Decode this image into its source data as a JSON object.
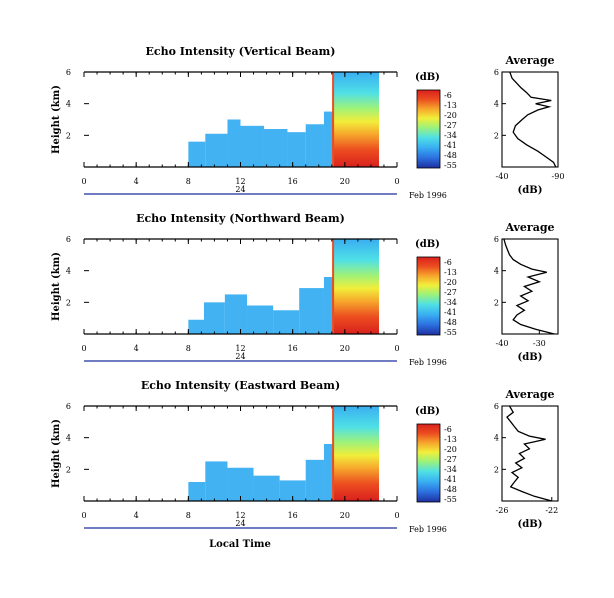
{
  "chart_data": {
    "type": "heatmap",
    "colorbar": {
      "label": "(dB)",
      "ticks": [
        "-6",
        "-13",
        "-20",
        "-27",
        "-34",
        "-41",
        "-48",
        "-55"
      ],
      "colors": [
        "#1e2f9e",
        "#2c6fe0",
        "#39aef2",
        "#4fe0e6",
        "#9df27a",
        "#f2ee3a",
        "#f6a52c",
        "#ec4d20",
        "#d9201e"
      ]
    },
    "bottom_label": "Local Time",
    "panels": [
      {
        "title": "Echo Intensity (Vertical Beam)",
        "ylabel": "Height (km)",
        "ylim": [
          0,
          6
        ],
        "y_ticks": [
          "6",
          "4",
          "2"
        ],
        "xlim": [
          0,
          24
        ],
        "x_ticks": [
          "0",
          "4",
          "8",
          "12",
          "16",
          "20",
          "0"
        ],
        "date_tick": "24",
        "date_label": "Feb 1996",
        "patches": [
          {
            "t0": 8.0,
            "t1": 9.3,
            "h0": 0.0,
            "h1": 1.6,
            "level": 0.2
          },
          {
            "t0": 9.3,
            "t1": 11.0,
            "h0": 0.0,
            "h1": 2.1,
            "level": 0.24
          },
          {
            "t0": 11.0,
            "t1": 12.0,
            "h0": 0.0,
            "h1": 3.0,
            "level": 0.3
          },
          {
            "t0": 12.0,
            "t1": 13.8,
            "h0": 0.0,
            "h1": 2.6,
            "level": 0.27
          },
          {
            "t0": 13.8,
            "t1": 15.6,
            "h0": 0.0,
            "h1": 2.4,
            "level": 0.24
          },
          {
            "t0": 15.6,
            "t1": 17.0,
            "h0": 0.0,
            "h1": 2.2,
            "level": 0.22
          },
          {
            "t0": 17.0,
            "t1": 18.4,
            "h0": 0.0,
            "h1": 2.7,
            "level": 0.26
          },
          {
            "t0": 18.4,
            "t1": 19.1,
            "h0": 0.0,
            "h1": 3.5,
            "level": 0.3
          }
        ],
        "curve": {
          "xlim": [
            -40,
            -90
          ],
          "x_ticks": [
            "-40",
            "-90"
          ],
          "ylim": [
            0,
            6
          ],
          "y_ticks": [
            "6",
            "4",
            "2"
          ],
          "profile": [
            [
              0.0,
              -88
            ],
            [
              0.3,
              -86
            ],
            [
              0.6,
              -80
            ],
            [
              1.0,
              -72
            ],
            [
              1.4,
              -62
            ],
            [
              1.8,
              -54
            ],
            [
              2.2,
              -50
            ],
            [
              2.6,
              -52
            ],
            [
              3.0,
              -58
            ],
            [
              3.3,
              -63
            ],
            [
              3.6,
              -72
            ],
            [
              3.8,
              -82
            ],
            [
              4.0,
              -70
            ],
            [
              4.2,
              -84
            ],
            [
              4.4,
              -66
            ],
            [
              4.7,
              -62
            ],
            [
              5.0,
              -57
            ],
            [
              5.3,
              -53
            ],
            [
              5.6,
              -49
            ],
            [
              6.0,
              -47
            ]
          ]
        }
      },
      {
        "title": "Echo Intensity (Northward Beam)",
        "ylabel": "Height (km)",
        "ylim": [
          0,
          6
        ],
        "y_ticks": [
          "6",
          "4",
          "2"
        ],
        "xlim": [
          0,
          24
        ],
        "x_ticks": [
          "0",
          "4",
          "8",
          "12",
          "16",
          "20",
          "0"
        ],
        "date_tick": "24",
        "date_label": "Feb 1996",
        "patches": [
          {
            "t0": 8.0,
            "t1": 9.2,
            "h0": 0.0,
            "h1": 0.9,
            "level": 0.2
          },
          {
            "t0": 9.2,
            "t1": 10.8,
            "h0": 0.0,
            "h1": 2.0,
            "level": 0.23
          },
          {
            "t0": 10.8,
            "t1": 12.5,
            "h0": 0.0,
            "h1": 2.5,
            "level": 0.28
          },
          {
            "t0": 12.5,
            "t1": 14.5,
            "h0": 0.0,
            "h1": 1.8,
            "level": 0.24
          },
          {
            "t0": 14.5,
            "t1": 16.5,
            "h0": 0.0,
            "h1": 1.5,
            "level": 0.22
          },
          {
            "t0": 16.5,
            "t1": 18.4,
            "h0": 0.0,
            "h1": 2.9,
            "level": 0.26
          },
          {
            "t0": 18.4,
            "t1": 19.1,
            "h0": 0.0,
            "h1": 3.6,
            "level": 0.3
          }
        ],
        "curve": {
          "xlim": [
            -40,
            -25
          ],
          "x_ticks": [
            "-40",
            "-30"
          ],
          "ylim": [
            0,
            6
          ],
          "y_ticks": [
            "6",
            "4",
            "2"
          ],
          "profile": [
            [
              0.0,
              -26
            ],
            [
              0.3,
              -31
            ],
            [
              0.6,
              -35
            ],
            [
              0.9,
              -37
            ],
            [
              1.2,
              -36
            ],
            [
              1.5,
              -34
            ],
            [
              1.8,
              -36
            ],
            [
              2.1,
              -33
            ],
            [
              2.4,
              -35
            ],
            [
              2.7,
              -32
            ],
            [
              3.0,
              -34
            ],
            [
              3.3,
              -30
            ],
            [
              3.6,
              -33
            ],
            [
              3.9,
              -28
            ],
            [
              4.1,
              -32
            ],
            [
              4.4,
              -35
            ],
            [
              4.7,
              -37
            ],
            [
              5.0,
              -38
            ],
            [
              5.3,
              -38.5
            ],
            [
              5.6,
              -39
            ],
            [
              6.0,
              -39.5
            ]
          ]
        }
      },
      {
        "title": "Echo Intensity (Eastward Beam)",
        "ylabel": "Height (km)",
        "ylim": [
          0,
          6
        ],
        "y_ticks": [
          "6",
          "4",
          "2"
        ],
        "xlim": [
          0,
          24
        ],
        "x_ticks": [
          "0",
          "4",
          "8",
          "12",
          "16",
          "20",
          "0"
        ],
        "date_tick": "24",
        "date_label": "Feb 1996",
        "patches": [
          {
            "t0": 8.0,
            "t1": 9.3,
            "h0": 0.0,
            "h1": 1.2,
            "level": 0.2
          },
          {
            "t0": 9.3,
            "t1": 11.0,
            "h0": 0.0,
            "h1": 2.5,
            "level": 0.24
          },
          {
            "t0": 11.0,
            "t1": 13.0,
            "h0": 0.0,
            "h1": 2.1,
            "level": 0.27
          },
          {
            "t0": 13.0,
            "t1": 15.0,
            "h0": 0.0,
            "h1": 1.6,
            "level": 0.23
          },
          {
            "t0": 15.0,
            "t1": 17.0,
            "h0": 0.0,
            "h1": 1.3,
            "level": 0.21
          },
          {
            "t0": 17.0,
            "t1": 18.4,
            "h0": 0.0,
            "h1": 2.6,
            "level": 0.25
          },
          {
            "t0": 18.4,
            "t1": 19.1,
            "h0": 0.0,
            "h1": 3.6,
            "level": 0.3
          }
        ],
        "curve": {
          "xlim": [
            -26,
            -21.5
          ],
          "x_ticks": [
            "-26",
            "-22"
          ],
          "ylim": [
            0,
            6
          ],
          "y_ticks": [
            "6",
            "4",
            "2"
          ],
          "profile": [
            [
              0.0,
              -22.0
            ],
            [
              0.3,
              -23.4
            ],
            [
              0.6,
              -24.4
            ],
            [
              0.9,
              -25.3
            ],
            [
              1.2,
              -25.0
            ],
            [
              1.5,
              -24.7
            ],
            [
              1.8,
              -25.2
            ],
            [
              2.1,
              -24.4
            ],
            [
              2.4,
              -24.9
            ],
            [
              2.7,
              -24.2
            ],
            [
              3.0,
              -24.6
            ],
            [
              3.3,
              -23.8
            ],
            [
              3.6,
              -24.2
            ],
            [
              3.9,
              -22.5
            ],
            [
              4.1,
              -23.8
            ],
            [
              4.4,
              -24.7
            ],
            [
              4.7,
              -25.0
            ],
            [
              5.0,
              -25.3
            ],
            [
              5.3,
              -25.6
            ],
            [
              5.6,
              -25.1
            ],
            [
              6.0,
              -25.4
            ]
          ]
        }
      }
    ],
    "curve_title": "Average",
    "curve_xlabel": "(dB)",
    "storm_window": {
      "t_start": 19.1,
      "t_end": 24.0,
      "h_max": 6.0
    }
  }
}
